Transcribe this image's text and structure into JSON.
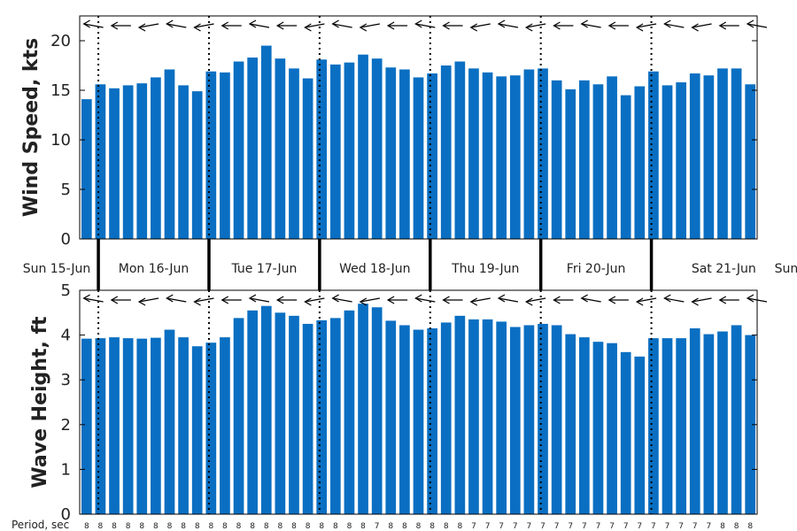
{
  "colors": {
    "bar": "#0a6fc2",
    "axis": "#000000",
    "text": "#222222"
  },
  "chart_data": [
    {
      "type": "bar",
      "ylabel": "Wind Speed, kts",
      "ylim": [
        0,
        22.5
      ],
      "yticks": [
        "0",
        "5",
        "10",
        "15",
        "20"
      ],
      "values": [
        14.1,
        15.6,
        15.2,
        15.5,
        15.7,
        16.3,
        17.1,
        15.5,
        14.9,
        16.9,
        16.8,
        17.9,
        18.3,
        19.5,
        18.2,
        17.2,
        16.2,
        18.1,
        17.6,
        17.8,
        18.6,
        18.2,
        17.3,
        17.1,
        16.3,
        16.7,
        17.5,
        17.9,
        17.2,
        16.8,
        16.4,
        16.5,
        17.1,
        17.2,
        16.0,
        15.1,
        16.0,
        15.6,
        16.4,
        14.5,
        15.4,
        16.9,
        15.5,
        15.8,
        16.7,
        16.5,
        17.2,
        17.2,
        15.6
      ],
      "direction_arrows": "wind direction arrows along top edge"
    },
    {
      "type": "bar",
      "ylabel": "Wave Height, ft",
      "ylim": [
        0,
        5
      ],
      "yticks": [
        "0",
        "1",
        "2",
        "3",
        "4",
        "5"
      ],
      "values": [
        3.92,
        3.93,
        3.95,
        3.93,
        3.92,
        3.94,
        4.12,
        3.95,
        3.75,
        3.83,
        3.95,
        4.38,
        4.55,
        4.65,
        4.5,
        4.43,
        4.25,
        4.33,
        4.38,
        4.55,
        4.7,
        4.62,
        4.32,
        4.22,
        4.12,
        4.15,
        4.28,
        4.43,
        4.35,
        4.35,
        4.3,
        4.18,
        4.22,
        4.25,
        4.22,
        4.02,
        3.95,
        3.85,
        3.82,
        3.62,
        3.52,
        3.93,
        3.93,
        3.93,
        4.15,
        4.02,
        4.08,
        4.22,
        4.0
      ]
    }
  ],
  "days": [
    "Sun 15-Jun",
    "Mon 16-Jun",
    "Tue 17-Jun",
    "Wed 18-Jun",
    "Thu 19-Jun",
    "Fri 20-Jun",
    "Sat 21-Jun",
    "Sun"
  ],
  "period_label": "Period, sec",
  "periods": [
    "8",
    "8",
    "8",
    "8",
    "8",
    "8",
    "8",
    "8",
    "8",
    "8",
    "8",
    "8",
    "8",
    "8",
    "8",
    "8",
    "8",
    "8",
    "8",
    "8",
    "8",
    "7",
    "8",
    "8",
    "8",
    "8",
    "8",
    "8",
    "7",
    "7",
    "7",
    "7",
    "7",
    "7",
    "7",
    "7",
    "7",
    "7",
    "7",
    "7",
    "7",
    "7",
    "7",
    "7",
    "7",
    "7",
    "8",
    "8",
    "8"
  ]
}
